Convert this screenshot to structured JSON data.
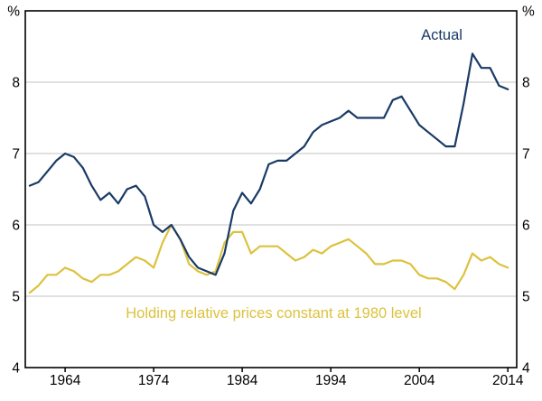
{
  "axes": {
    "y_unit": "%",
    "y_ticks": [
      "8",
      "7",
      "6",
      "5",
      "4"
    ],
    "y_tick_values": [
      8,
      7,
      6,
      5,
      4
    ],
    "x_ticks": [
      "1964",
      "1974",
      "1984",
      "1994",
      "2004",
      "2014"
    ],
    "x_tick_values": [
      1964,
      1974,
      1984,
      1994,
      2004,
      2014
    ]
  },
  "colors": {
    "actual": "#1a3a66",
    "constant": "#dcc23e",
    "gridline": "#c3c3c3",
    "axis": "#000000"
  },
  "annotations": {
    "actual_label": "Actual",
    "constant_label": "Holding relative prices constant at 1980 level"
  },
  "chart_data": {
    "type": "line",
    "title": "",
    "xlabel": "",
    "ylabel": "%",
    "xlim": [
      1959.5,
      2015
    ],
    "ylim": [
      4,
      9
    ],
    "gridlines": [
      5,
      6,
      7,
      8
    ],
    "legend_position": "inline-annotations",
    "x": [
      1960,
      1961,
      1962,
      1963,
      1964,
      1965,
      1966,
      1967,
      1968,
      1969,
      1970,
      1971,
      1972,
      1973,
      1974,
      1975,
      1976,
      1977,
      1978,
      1979,
      1980,
      1981,
      1982,
      1983,
      1984,
      1985,
      1986,
      1987,
      1988,
      1989,
      1990,
      1991,
      1992,
      1993,
      1994,
      1995,
      1996,
      1997,
      1998,
      1999,
      2000,
      2001,
      2002,
      2003,
      2004,
      2005,
      2006,
      2007,
      2008,
      2009,
      2010,
      2011,
      2012,
      2013,
      2014
    ],
    "series": [
      {
        "id": "constant",
        "name": "Holding relative prices constant at 1980 level",
        "color": "#dcc23e",
        "values": [
          5.05,
          5.15,
          5.3,
          5.3,
          5.4,
          5.35,
          5.25,
          5.2,
          5.3,
          5.3,
          5.35,
          5.45,
          5.55,
          5.5,
          5.4,
          5.75,
          6.0,
          5.8,
          5.45,
          5.35,
          5.3,
          5.35,
          5.75,
          5.9,
          5.9,
          5.6,
          5.7,
          5.7,
          5.7,
          5.6,
          5.5,
          5.55,
          5.65,
          5.6,
          5.7,
          5.75,
          5.8,
          5.7,
          5.6,
          5.45,
          5.45,
          5.5,
          5.5,
          5.45,
          5.3,
          5.25,
          5.25,
          5.2,
          5.1,
          5.3,
          5.6,
          5.5,
          5.55,
          5.45,
          5.4
        ]
      },
      {
        "id": "actual",
        "name": "Actual",
        "color": "#1a3a66",
        "values": [
          6.55,
          6.6,
          6.75,
          6.9,
          7.0,
          6.95,
          6.8,
          6.55,
          6.35,
          6.45,
          6.3,
          6.5,
          6.55,
          6.4,
          6.0,
          5.9,
          6.0,
          5.8,
          5.55,
          5.4,
          5.35,
          5.3,
          5.6,
          6.2,
          6.45,
          6.3,
          6.5,
          6.85,
          6.9,
          6.9,
          7.0,
          7.1,
          7.3,
          7.4,
          7.45,
          7.5,
          7.6,
          7.5,
          7.5,
          7.5,
          7.5,
          7.75,
          7.8,
          7.6,
          7.4,
          7.3,
          7.2,
          7.1,
          7.1,
          7.7,
          8.4,
          8.2,
          8.2,
          7.95,
          7.9
        ]
      }
    ]
  }
}
